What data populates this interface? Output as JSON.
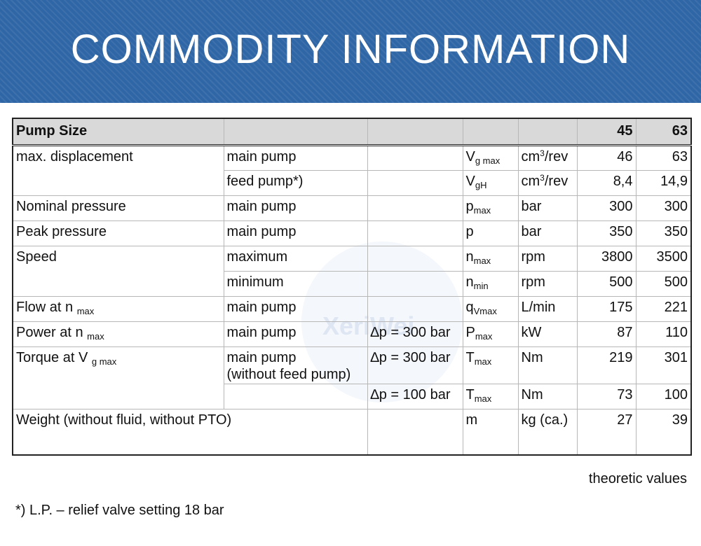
{
  "header": {
    "title": "COMMODITY INFORMATION"
  },
  "watermark": {
    "text": "XeriWei"
  },
  "table": {
    "columns": [
      "Pump Size",
      "",
      "",
      "",
      "",
      "45",
      "63"
    ],
    "rows": {
      "max_disp_main": {
        "label": "max. displacement",
        "variant": "main pump",
        "condition": "",
        "symbol": "V",
        "symbol_sub": "g max",
        "unit": "cm",
        "unit_sup": "3",
        "unit_rest": "/rev",
        "v45": "46",
        "v63": "63"
      },
      "max_disp_feed": {
        "variant": "feed pump*)",
        "condition": "",
        "symbol": "V",
        "symbol_sub": "gH",
        "unit": "cm",
        "unit_sup": "3",
        "unit_rest": "/rev",
        "v45": "8,4",
        "v63": "14,9"
      },
      "nominal_pressure": {
        "label": "Nominal pressure",
        "variant": "main pump",
        "condition": "",
        "symbol": "p",
        "symbol_sub": "max",
        "unit": "bar",
        "v45": "300",
        "v63": "300"
      },
      "peak_pressure": {
        "label": "Peak pressure",
        "variant": "main pump",
        "condition": "",
        "symbol": "p",
        "symbol_sub": "",
        "unit": "bar",
        "v45": "350",
        "v63": "350"
      },
      "speed_max": {
        "label": "Speed",
        "variant": "maximum",
        "condition": "",
        "symbol": "n",
        "symbol_sub": "max",
        "unit": "rpm",
        "v45": "3800",
        "v63": "3500"
      },
      "speed_min": {
        "variant": "minimum",
        "condition": "",
        "symbol": "n",
        "symbol_sub": "min",
        "unit": "rpm",
        "v45": "500",
        "v63": "500"
      },
      "flow": {
        "label": "Flow at n",
        "label_sub": "max",
        "variant": "main pump",
        "condition": "",
        "symbol": "q",
        "symbol_sub": "Vmax",
        "unit": "L/min",
        "v45": "175",
        "v63": "221"
      },
      "power": {
        "label": "Power at n",
        "label_sub": "max",
        "variant": "main pump",
        "condition": "∆p = 300 bar",
        "symbol": "P",
        "symbol_sub": "max",
        "unit": "kW",
        "v45": "87",
        "v63": "110"
      },
      "torque_300": {
        "label": "Torque at V",
        "label_sub": "g max",
        "variant": "main pump",
        "variant_line2": "(without feed pump)",
        "condition": "∆p = 300 bar",
        "symbol": "T",
        "symbol_sub": "max",
        "unit": "Nm",
        "v45": "219",
        "v63": "301"
      },
      "torque_100": {
        "variant": "",
        "condition": "∆p = 100 bar",
        "symbol": "T",
        "symbol_sub": "max",
        "unit": "Nm",
        "v45": "73",
        "v63": "100"
      },
      "weight": {
        "label": "Weight (without fluid, without PTO)",
        "condition": "",
        "symbol": "m",
        "unit": "kg (ca.)",
        "v45": "27",
        "v63": "39"
      }
    }
  },
  "notes": {
    "theoretic": "theoretic values",
    "footnote": "*) L.P. – relief valve setting 18 bar"
  }
}
